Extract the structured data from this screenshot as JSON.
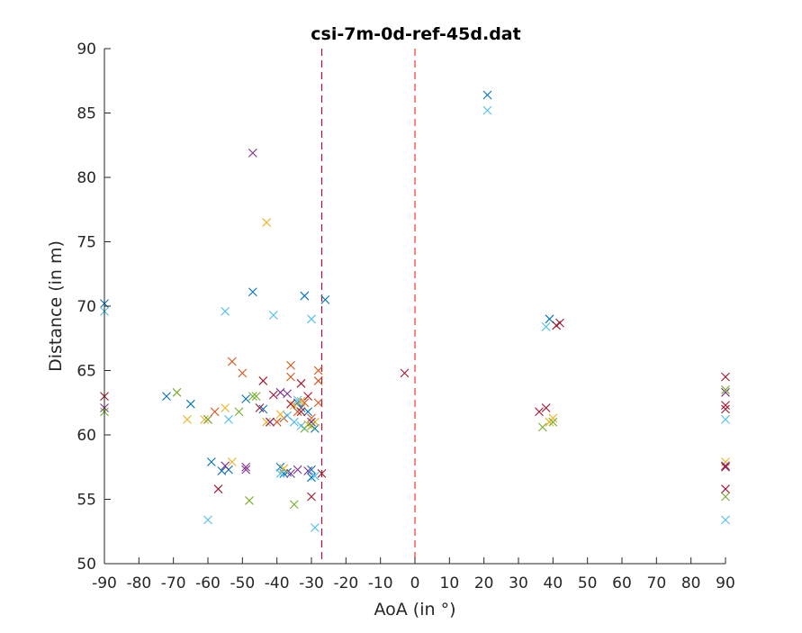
{
  "chart_data": {
    "type": "scatter",
    "title": "csi-7m-0d-ref-45d.dat",
    "xlabel": "AoA (in °)",
    "ylabel": "Distance (in m)",
    "xlim": [
      -90,
      90
    ],
    "ylim": [
      50,
      90
    ],
    "xticks": [
      -90,
      -80,
      -70,
      -60,
      -50,
      -40,
      -30,
      -20,
      -10,
      0,
      10,
      20,
      30,
      40,
      50,
      60,
      70,
      80,
      90
    ],
    "xtick_labels": [
      "-90",
      "-80",
      "-70",
      "-60",
      "-50",
      "-40",
      "-30",
      "-20",
      "-10",
      "0",
      "10",
      "20",
      "30",
      "40",
      "50",
      "60",
      "70",
      "80",
      "90"
    ],
    "yticks": [
      50,
      55,
      60,
      65,
      70,
      75,
      80,
      85,
      90
    ],
    "ytick_labels": [
      "50",
      "55",
      "60",
      "65",
      "70",
      "75",
      "80",
      "85",
      "90"
    ],
    "marker": "x",
    "grid": false,
    "vlines": [
      {
        "x": -27,
        "color": "#a2142f",
        "style": "dashed"
      },
      {
        "x": 0,
        "color": "#ff3333",
        "style": "dashed"
      }
    ],
    "series": [
      {
        "color": "#0072bd",
        "points": [
          [
            -90,
            70.2
          ],
          [
            -72,
            63
          ],
          [
            -65,
            62.4
          ],
          [
            -59,
            57.9
          ],
          [
            -56,
            57.2
          ],
          [
            -54,
            57.3
          ],
          [
            -49,
            62.8
          ],
          [
            -47,
            71.1
          ],
          [
            -44,
            62
          ],
          [
            -39,
            57.5
          ],
          [
            -38,
            57
          ],
          [
            -37,
            57.1
          ],
          [
            -34,
            62.5
          ],
          [
            -33,
            62.1
          ],
          [
            -32,
            70.8
          ],
          [
            -31,
            61.8
          ],
          [
            -30,
            57.3
          ],
          [
            -30,
            56.7
          ],
          [
            -29,
            60.5
          ],
          [
            -26,
            70.5
          ],
          [
            21,
            86.4
          ],
          [
            39,
            69
          ]
        ]
      },
      {
        "color": "#d95319",
        "points": [
          [
            -58,
            61.8
          ],
          [
            -53,
            65.7
          ],
          [
            -50,
            64.8
          ],
          [
            -42,
            61
          ],
          [
            -40,
            61
          ],
          [
            -38,
            61.3
          ],
          [
            -36,
            65.4
          ],
          [
            -36,
            64.5
          ],
          [
            -34,
            61.8
          ],
          [
            -32,
            62.5
          ],
          [
            -30,
            61.3
          ],
          [
            -28,
            65
          ],
          [
            -28,
            64.2
          ],
          [
            -28,
            62.5
          ]
        ]
      },
      {
        "color": "#edb120",
        "points": [
          [
            -66,
            61.2
          ],
          [
            -61,
            61.2
          ],
          [
            -55,
            62.1
          ],
          [
            -53,
            57.9
          ],
          [
            -43,
            76.5
          ],
          [
            -43,
            61
          ],
          [
            -39,
            61.6
          ],
          [
            -38,
            57.4
          ],
          [
            -35,
            62.3
          ],
          [
            -33,
            62.6
          ],
          [
            -31,
            60.8
          ],
          [
            -29,
            61
          ],
          [
            39,
            61
          ],
          [
            40,
            61.3
          ],
          [
            90,
            57.9
          ]
        ]
      },
      {
        "color": "#7e2f8e",
        "points": [
          [
            -90,
            62.1
          ],
          [
            -60,
            61.2
          ],
          [
            -55,
            57.6
          ],
          [
            -49,
            57.5
          ],
          [
            -49,
            57.3
          ],
          [
            -47,
            81.9
          ],
          [
            -42,
            61
          ],
          [
            -39,
            63.3
          ],
          [
            -37,
            63.2
          ],
          [
            -36,
            57
          ],
          [
            -34,
            57.3
          ],
          [
            -31,
            57.2
          ],
          [
            -30,
            61
          ],
          [
            90,
            63.3
          ],
          [
            90,
            57.6
          ]
        ]
      },
      {
        "color": "#77ac30",
        "points": [
          [
            -90,
            61.8
          ],
          [
            -69,
            63.3
          ],
          [
            -60,
            61.2
          ],
          [
            -51,
            61.8
          ],
          [
            -48,
            54.9
          ],
          [
            -47,
            63
          ],
          [
            -46,
            63
          ],
          [
            -35,
            54.6
          ],
          [
            -32,
            60.5
          ],
          [
            -30,
            60.7
          ],
          [
            37,
            60.6
          ],
          [
            40,
            61
          ],
          [
            90,
            63.5
          ],
          [
            90,
            55.2
          ]
        ]
      },
      {
        "color": "#4dbeee",
        "points": [
          [
            -90,
            69.6
          ],
          [
            -60,
            53.4
          ],
          [
            -55,
            69.6
          ],
          [
            -54,
            61.2
          ],
          [
            -41,
            69.3
          ],
          [
            -39,
            57
          ],
          [
            -37,
            61.5
          ],
          [
            -35,
            61
          ],
          [
            -34,
            62.7
          ],
          [
            -33,
            60.7
          ],
          [
            -30,
            69
          ],
          [
            -29,
            52.8
          ],
          [
            -29,
            56.8
          ],
          [
            21,
            85.2
          ],
          [
            38,
            68.4
          ],
          [
            90,
            61.2
          ],
          [
            90,
            53.4
          ]
        ]
      },
      {
        "color": "#a2142f",
        "points": [
          [
            -90,
            63
          ],
          [
            -57,
            55.8
          ],
          [
            -45,
            62.1
          ],
          [
            -44,
            64.2
          ],
          [
            -41,
            63.1
          ],
          [
            -36,
            62.4
          ],
          [
            -33,
            64
          ],
          [
            -33,
            61.8
          ],
          [
            -31,
            63
          ],
          [
            -30,
            55.2
          ],
          [
            -27,
            57
          ],
          [
            -3,
            64.8
          ],
          [
            36,
            61.8
          ],
          [
            38,
            62.1
          ],
          [
            41,
            68.5
          ],
          [
            42,
            68.7
          ],
          [
            90,
            64.5
          ],
          [
            90,
            62.3
          ],
          [
            90,
            62
          ],
          [
            90,
            57.5
          ],
          [
            90,
            55.8
          ]
        ]
      }
    ]
  }
}
